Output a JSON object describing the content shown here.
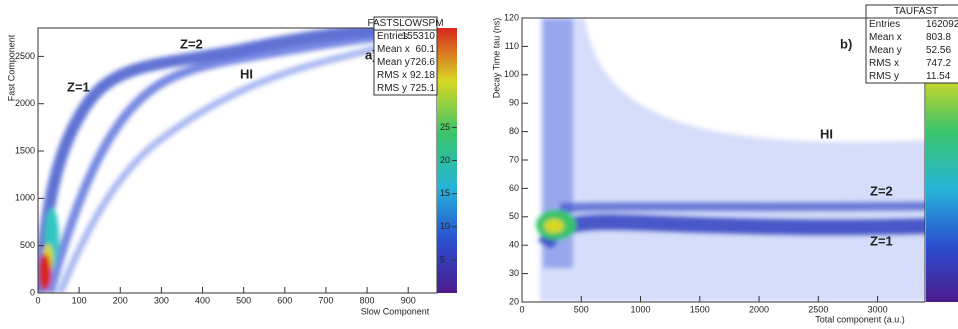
{
  "chart_data": [
    {
      "type": "heatmap",
      "x_label": "Slow Component",
      "y_label": "Fast Component",
      "panel_label": "a)",
      "xlim": [
        0,
        970
      ],
      "ylim": [
        0,
        2800
      ],
      "xticks": [
        0,
        100,
        200,
        300,
        400,
        500,
        600,
        700,
        800,
        900
      ],
      "yticks": [
        0,
        500,
        1000,
        1500,
        2000,
        2500
      ],
      "zlim": [
        0,
        40
      ],
      "zticks": [
        5,
        10,
        15,
        20,
        25
      ],
      "annotations": [
        "Z=1",
        "Z=2",
        "HI"
      ],
      "stats": {
        "title": "FASTSLOWSPM",
        "rows": [
          {
            "label": "Entries",
            "value": 155310
          },
          {
            "label": "Mean x",
            "value": 60.1
          },
          {
            "label": "Mean y",
            "value": 726.6
          },
          {
            "label": "RMS x",
            "value": 92.18
          },
          {
            "label": "RMS y",
            "value": 725.1
          }
        ]
      }
    },
    {
      "type": "heatmap",
      "x_label": "Total component (a.u.)",
      "y_label": "Decay Time tau (ns)",
      "panel_label": "b)",
      "xlim": [
        0,
        3400
      ],
      "ylim": [
        20,
        120
      ],
      "xticks": [
        0,
        500,
        1000,
        1500,
        2000,
        2500,
        3000
      ],
      "yticks": [
        20,
        30,
        40,
        50,
        60,
        70,
        80,
        90,
        100,
        110,
        120
      ],
      "annotations": [
        "HI",
        "Z=2",
        "Z=1"
      ],
      "stats": {
        "title": "TAUFAST",
        "rows": [
          {
            "label": "Entries",
            "value": 162092
          },
          {
            "label": "Mean x",
            "value": 803.8
          },
          {
            "label": "Mean y",
            "value": 52.56
          },
          {
            "label": "RMS x",
            "value": 747.2
          },
          {
            "label": "RMS y",
            "value": 11.54
          }
        ]
      }
    }
  ]
}
